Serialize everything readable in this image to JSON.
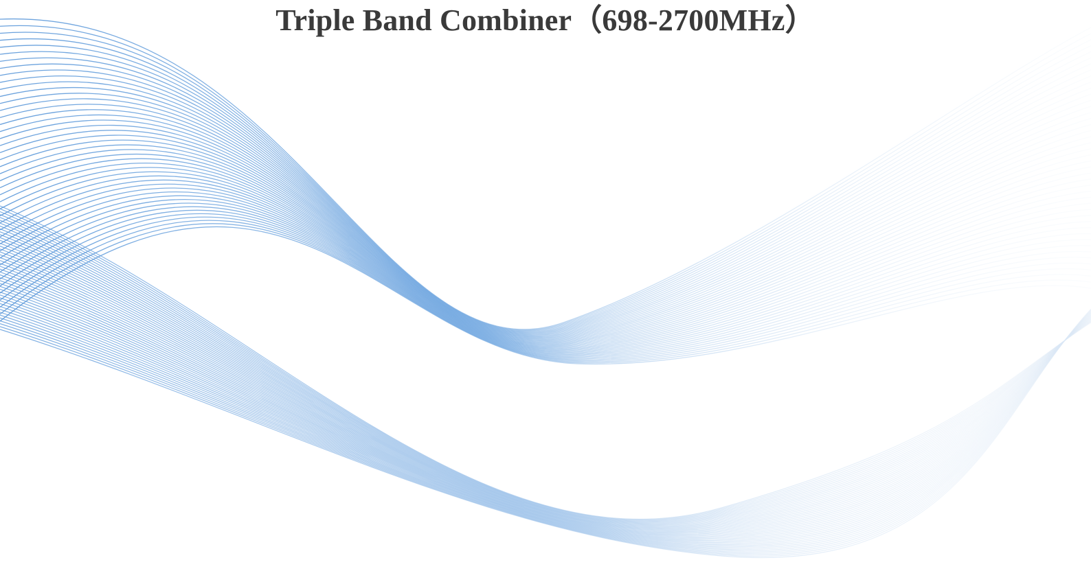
{
  "title": "Triple Band Combiner（698-2700MHz）",
  "colors": {
    "background": "#ffffff",
    "title": "#3a3a3a",
    "wave_primary": "#4d8fd6",
    "wave_light": "#cfe0f2"
  },
  "decoration": {
    "icon": "flowing-wave-lines"
  }
}
